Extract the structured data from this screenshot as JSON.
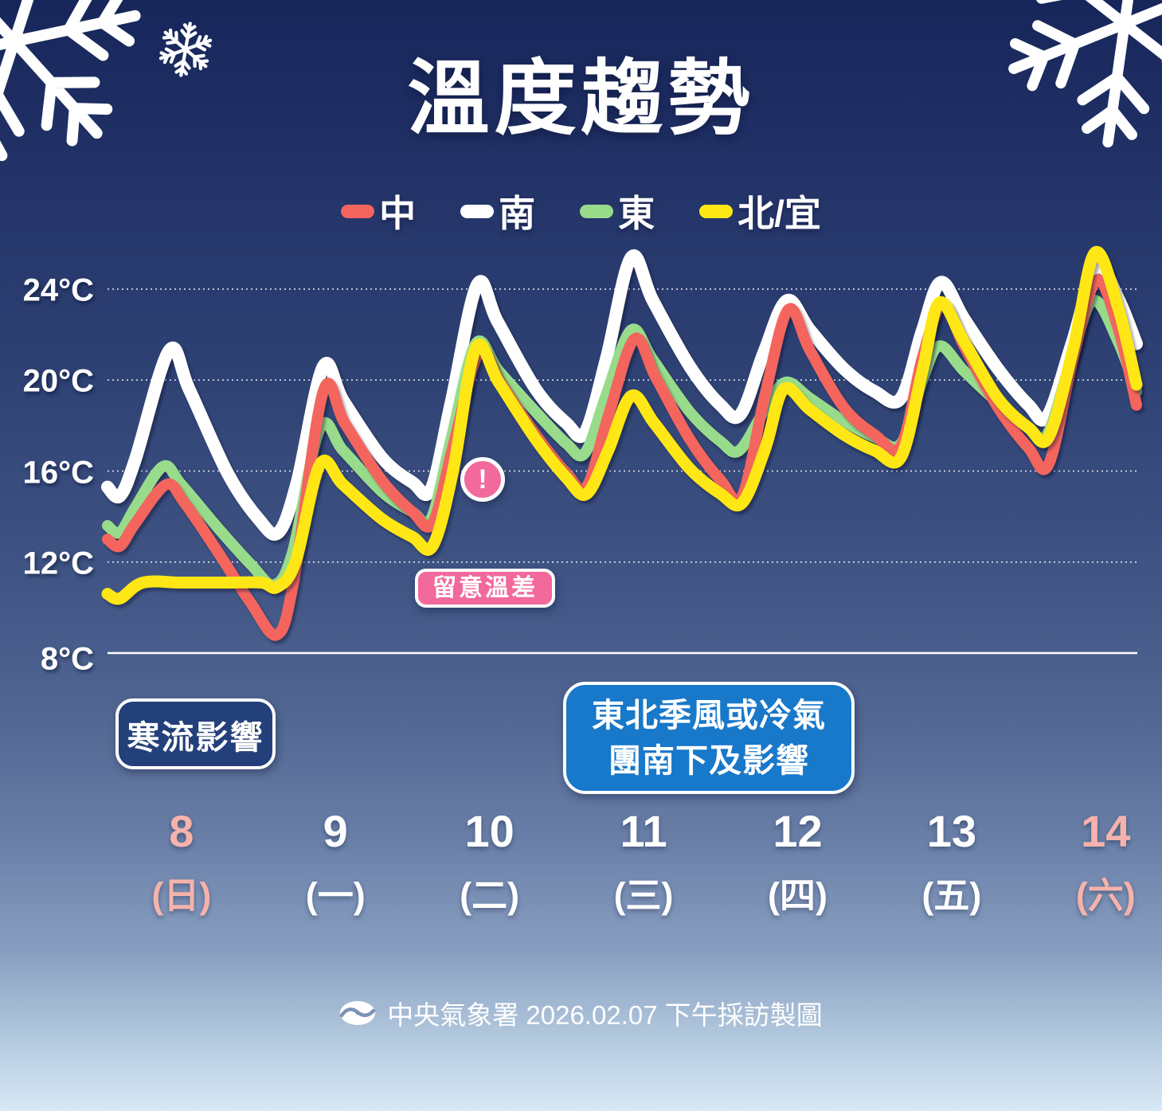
{
  "title": "溫度趨勢",
  "legend": {
    "items": [
      {
        "label": "中",
        "color": "#f4655d"
      },
      {
        "label": "南",
        "color": "#ffffff"
      },
      {
        "label": "東",
        "color": "#98dc8b"
      },
      {
        "label": "北/宜",
        "color": "#ffe715"
      }
    ]
  },
  "y_axis": {
    "unit": "°C",
    "ticks": [
      {
        "label": "24°C",
        "value": 24
      },
      {
        "label": "20°C",
        "value": 20
      },
      {
        "label": "16°C",
        "value": 16
      },
      {
        "label": "12°C",
        "value": 12
      },
      {
        "label": "8°C",
        "value": 8
      }
    ]
  },
  "x_axis": {
    "days": [
      {
        "date": "8",
        "weekday": "(日)",
        "weekend": true
      },
      {
        "date": "9",
        "weekday": "(一)",
        "weekend": false
      },
      {
        "date": "10",
        "weekday": "(二)",
        "weekend": false
      },
      {
        "date": "11",
        "weekday": "(三)",
        "weekend": false
      },
      {
        "date": "12",
        "weekday": "(四)",
        "weekend": false
      },
      {
        "date": "13",
        "weekday": "(五)",
        "weekend": false
      },
      {
        "date": "14",
        "weekday": "(六)",
        "weekend": true
      }
    ]
  },
  "annotations": {
    "cold_surge": {
      "text": "寒流影響",
      "bg": "#23407a"
    },
    "monsoon": {
      "line1": "東北季風或冷氣",
      "line2": "團南下及影響",
      "bg": "#1878ca"
    },
    "temp_diff": {
      "text": "留意溫差",
      "bg": "#f2699b"
    },
    "alert_icon": "!"
  },
  "footer": {
    "text": "中央氣象署 2026.02.07 下午採訪製圖"
  },
  "colors": {
    "date_weekend": "#f6b3ab",
    "date_weekday": "#ffffff",
    "gridline": "#ffffff"
  },
  "chart_data": {
    "type": "line",
    "title": "溫度趨勢",
    "ylabel": "°C",
    "ylim": [
      8,
      26
    ],
    "grid_values": [
      24,
      20,
      16,
      12
    ],
    "baseline_value": 8,
    "x_desc": "day of month (Feb 2026); fraction of day = time of day",
    "xlim": [
      7.52,
      14.2
    ],
    "x_ticks": [
      8,
      9,
      10,
      11,
      12,
      13,
      14
    ],
    "legend_position": "top",
    "series": [
      {
        "name": "南",
        "region": "south",
        "color": "#ffffff",
        "points": [
          [
            7.52,
            15.3
          ],
          [
            7.6,
            14.9
          ],
          [
            7.7,
            16.5
          ],
          [
            7.92,
            21.3
          ],
          [
            8.05,
            19.6
          ],
          [
            8.3,
            15.9
          ],
          [
            8.5,
            13.9
          ],
          [
            8.63,
            13.3
          ],
          [
            8.75,
            15.5
          ],
          [
            8.92,
            20.6
          ],
          [
            9.05,
            19.1
          ],
          [
            9.3,
            16.6
          ],
          [
            9.5,
            15.5
          ],
          [
            9.62,
            15.2
          ],
          [
            9.75,
            19.0
          ],
          [
            9.92,
            24.2
          ],
          [
            10.05,
            22.6
          ],
          [
            10.3,
            19.6
          ],
          [
            10.5,
            18.1
          ],
          [
            10.62,
            17.7
          ],
          [
            10.76,
            21.0
          ],
          [
            10.92,
            25.4
          ],
          [
            11.06,
            23.5
          ],
          [
            11.3,
            20.6
          ],
          [
            11.5,
            18.9
          ],
          [
            11.63,
            18.5
          ],
          [
            11.78,
            21.2
          ],
          [
            11.93,
            23.5
          ],
          [
            12.08,
            22.2
          ],
          [
            12.3,
            20.5
          ],
          [
            12.5,
            19.5
          ],
          [
            12.67,
            19.2
          ],
          [
            12.81,
            22.2
          ],
          [
            12.93,
            24.3
          ],
          [
            13.08,
            22.7
          ],
          [
            13.3,
            20.5
          ],
          [
            13.5,
            18.9
          ],
          [
            13.62,
            18.4
          ],
          [
            13.78,
            21.6
          ],
          [
            13.94,
            25.0
          ],
          [
            14.08,
            23.6
          ],
          [
            14.2,
            21.6
          ]
        ]
      },
      {
        "name": "東",
        "region": "east",
        "color": "#98dc8b",
        "points": [
          [
            7.52,
            13.6
          ],
          [
            7.6,
            13.3
          ],
          [
            7.7,
            14.4
          ],
          [
            7.88,
            16.2
          ],
          [
            8.0,
            15.4
          ],
          [
            8.25,
            13.4
          ],
          [
            8.45,
            11.9
          ],
          [
            8.6,
            11.0
          ],
          [
            8.72,
            12.4
          ],
          [
            8.9,
            17.9
          ],
          [
            9.05,
            16.9
          ],
          [
            9.3,
            15.1
          ],
          [
            9.5,
            14.2
          ],
          [
            9.62,
            13.9
          ],
          [
            9.75,
            17.4
          ],
          [
            9.91,
            21.6
          ],
          [
            10.06,
            20.4
          ],
          [
            10.3,
            18.6
          ],
          [
            10.5,
            17.2
          ],
          [
            10.62,
            16.8
          ],
          [
            10.76,
            19.4
          ],
          [
            10.92,
            22.2
          ],
          [
            11.06,
            20.9
          ],
          [
            11.3,
            18.6
          ],
          [
            11.5,
            17.3
          ],
          [
            11.62,
            16.9
          ],
          [
            11.78,
            18.6
          ],
          [
            11.92,
            19.9
          ],
          [
            12.08,
            19.2
          ],
          [
            12.3,
            18.2
          ],
          [
            12.5,
            17.5
          ],
          [
            12.67,
            17.2
          ],
          [
            12.81,
            20.0
          ],
          [
            12.92,
            21.5
          ],
          [
            13.08,
            20.4
          ],
          [
            13.3,
            19.0
          ],
          [
            13.5,
            17.9
          ],
          [
            13.62,
            17.6
          ],
          [
            13.78,
            21.0
          ],
          [
            13.92,
            23.5
          ],
          [
            14.08,
            21.7
          ],
          [
            14.2,
            19.5
          ]
        ]
      },
      {
        "name": "中",
        "region": "central",
        "color": "#f4655d",
        "points": [
          [
            7.52,
            13.0
          ],
          [
            7.6,
            12.7
          ],
          [
            7.7,
            13.7
          ],
          [
            7.9,
            15.4
          ],
          [
            8.02,
            14.6
          ],
          [
            8.25,
            12.3
          ],
          [
            8.45,
            10.2
          ],
          [
            8.62,
            8.8
          ],
          [
            8.73,
            11.2
          ],
          [
            8.92,
            19.5
          ],
          [
            9.06,
            18.1
          ],
          [
            9.3,
            15.6
          ],
          [
            9.5,
            14.2
          ],
          [
            9.63,
            13.7
          ],
          [
            9.76,
            17.0
          ],
          [
            9.93,
            21.2
          ],
          [
            10.07,
            19.9
          ],
          [
            10.3,
            17.6
          ],
          [
            10.5,
            15.9
          ],
          [
            10.63,
            15.3
          ],
          [
            10.77,
            18.4
          ],
          [
            10.94,
            21.8
          ],
          [
            11.08,
            20.1
          ],
          [
            11.3,
            17.4
          ],
          [
            11.5,
            15.6
          ],
          [
            11.64,
            14.9
          ],
          [
            11.79,
            19.4
          ],
          [
            11.94,
            23.1
          ],
          [
            12.08,
            21.3
          ],
          [
            12.3,
            18.8
          ],
          [
            12.5,
            17.6
          ],
          [
            12.67,
            17.1
          ],
          [
            12.81,
            21.0
          ],
          [
            12.94,
            23.3
          ],
          [
            13.08,
            21.5
          ],
          [
            13.3,
            18.8
          ],
          [
            13.5,
            17.0
          ],
          [
            13.63,
            16.3
          ],
          [
            13.79,
            21.0
          ],
          [
            13.94,
            24.4
          ],
          [
            14.08,
            22.3
          ],
          [
            14.2,
            18.9
          ]
        ]
      },
      {
        "name": "北/宜",
        "region": "north-yilan",
        "color": "#ffe715",
        "points": [
          [
            7.52,
            10.6
          ],
          [
            7.6,
            10.4
          ],
          [
            7.75,
            11.1
          ],
          [
            8.0,
            11.1
          ],
          [
            8.3,
            11.1
          ],
          [
            8.52,
            11.1
          ],
          [
            8.62,
            10.9
          ],
          [
            8.74,
            12.0
          ],
          [
            8.9,
            16.3
          ],
          [
            9.05,
            15.4
          ],
          [
            9.3,
            13.9
          ],
          [
            9.5,
            13.1
          ],
          [
            9.63,
            12.7
          ],
          [
            9.76,
            15.9
          ],
          [
            9.91,
            21.4
          ],
          [
            10.06,
            19.9
          ],
          [
            10.3,
            17.4
          ],
          [
            10.5,
            15.7
          ],
          [
            10.63,
            15.0
          ],
          [
            10.77,
            16.9
          ],
          [
            10.92,
            19.3
          ],
          [
            11.07,
            18.1
          ],
          [
            11.3,
            16.1
          ],
          [
            11.5,
            15.0
          ],
          [
            11.64,
            14.6
          ],
          [
            11.79,
            17.0
          ],
          [
            11.91,
            19.6
          ],
          [
            12.08,
            18.7
          ],
          [
            12.3,
            17.6
          ],
          [
            12.5,
            16.9
          ],
          [
            12.67,
            16.6
          ],
          [
            12.81,
            20.4
          ],
          [
            12.92,
            23.4
          ],
          [
            13.08,
            21.7
          ],
          [
            13.3,
            19.2
          ],
          [
            13.5,
            17.9
          ],
          [
            13.63,
            17.5
          ],
          [
            13.79,
            21.4
          ],
          [
            13.93,
            25.6
          ],
          [
            14.08,
            23.2
          ],
          [
            14.2,
            19.8
          ]
        ]
      }
    ]
  }
}
